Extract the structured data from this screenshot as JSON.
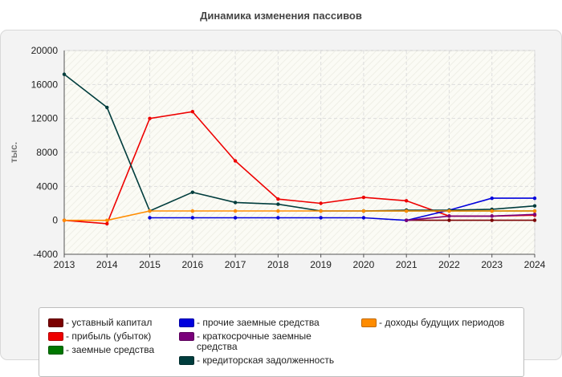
{
  "chart_data": {
    "type": "line",
    "title": "Динамика изменения пассивов",
    "xlabel": "",
    "ylabel": "тыс.",
    "x": [
      "2013",
      "2014",
      "2015",
      "2016",
      "2017",
      "2018",
      "2019",
      "2020",
      "2021",
      "2022",
      "2023",
      "2024"
    ],
    "ylim": [
      -4000,
      20000
    ],
    "yticks": [
      "-4000",
      "0",
      "4000",
      "8000",
      "12000",
      "16000",
      "20000"
    ],
    "grid": true,
    "legend_position": "bottom",
    "series": [
      {
        "name": "- уставный капитал",
        "color": "#7b0000",
        "values": [
          null,
          null,
          null,
          null,
          null,
          null,
          null,
          null,
          10,
          10,
          10,
          10
        ]
      },
      {
        "name": "- прибыль (убыток)",
        "color": "#ee0000",
        "values": [
          0,
          -400,
          12000,
          12800,
          7000,
          2500,
          2000,
          2700,
          2300,
          500,
          500,
          600
        ]
      },
      {
        "name": "- заемные средства",
        "color": "#007700",
        "values": [
          null,
          null,
          null,
          null,
          null,
          null,
          null,
          1100,
          1100,
          1100,
          1100,
          1100
        ]
      },
      {
        "name": "- прочие заемные средства",
        "color": "#0000dd",
        "values": [
          null,
          null,
          300,
          300,
          300,
          300,
          300,
          300,
          0,
          1200,
          2600,
          2600
        ]
      },
      {
        "name": "- краткосрочные заемные средства",
        "color": "#7a007a",
        "values": [
          null,
          null,
          null,
          null,
          null,
          null,
          null,
          null,
          0,
          500,
          500,
          700
        ]
      },
      {
        "name": "- кредиторская задолженность",
        "color": "#003d3d",
        "values": [
          17200,
          13300,
          1100,
          3300,
          2100,
          1900,
          1100,
          1100,
          1200,
          1200,
          1300,
          1700
        ]
      },
      {
        "name": "- доходы будущих периодов",
        "color": "#ff8c00",
        "values": [
          0,
          0,
          1100,
          1100,
          1100,
          1100,
          1100,
          1100,
          1100,
          1100,
          1100,
          1100
        ]
      }
    ]
  }
}
